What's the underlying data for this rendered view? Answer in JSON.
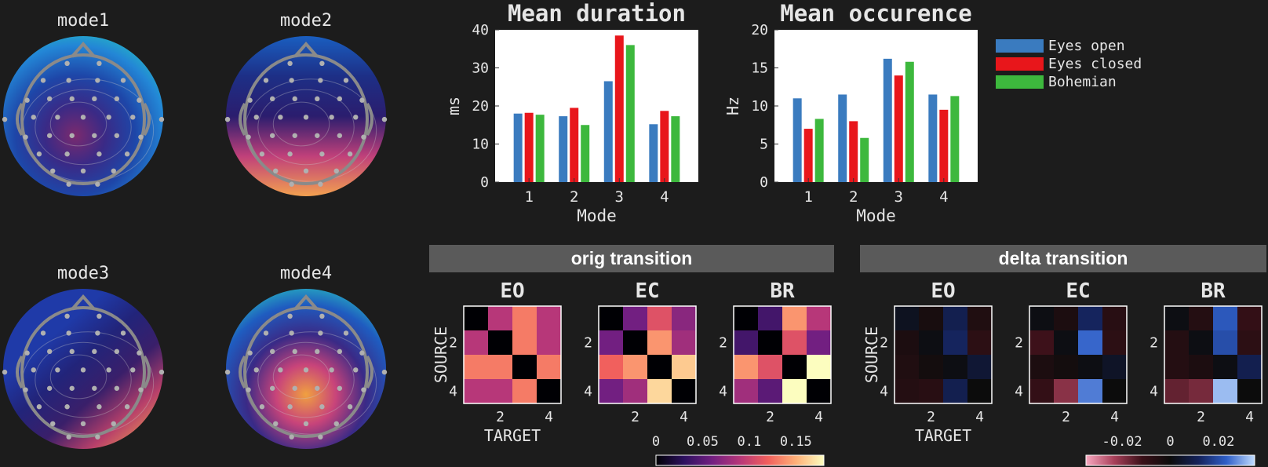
{
  "topomaps": [
    {
      "label": "mode1",
      "colors": [
        "#7b2a6e",
        "#3a2a86",
        "#1e46a8",
        "#2386d6",
        "#25d1b8"
      ]
    },
    {
      "label": "mode2",
      "colors": [
        "#1a5ec0",
        "#1d2f86",
        "#2b1d6e",
        "#c0407a",
        "#f2a050"
      ]
    },
    {
      "label": "mode3",
      "colors": [
        "#1f3aa8",
        "#22247a",
        "#3a1f6a",
        "#b8406a",
        "#f0a050"
      ]
    },
    {
      "label": "mode4",
      "colors": [
        "#f0a040",
        "#c8447a",
        "#3a2a86",
        "#1f5cc0",
        "#2ad0c0"
      ]
    }
  ],
  "chart_data": [
    {
      "type": "bar",
      "title": "Mean duration",
      "xlabel": "Mode",
      "ylabel": "ms",
      "categories": [
        "1",
        "2",
        "3",
        "4"
      ],
      "ylim": [
        0,
        40
      ],
      "yticks": [
        "0",
        "10",
        "20",
        "30",
        "40"
      ],
      "series": [
        {
          "name": "Eyes open",
          "color": "#3a7bbf",
          "values": [
            18,
            17.3,
            26.5,
            15.2
          ]
        },
        {
          "name": "Eyes closed",
          "color": "#e8161b",
          "values": [
            18.2,
            19.5,
            38.5,
            18.7
          ]
        },
        {
          "name": "Bohemian",
          "color": "#3db83d",
          "values": [
            17.7,
            15,
            36,
            17.3
          ]
        }
      ]
    },
    {
      "type": "bar",
      "title": "Mean occurence",
      "xlabel": "Mode",
      "ylabel": "Hz",
      "categories": [
        "1",
        "2",
        "3",
        "4"
      ],
      "ylim": [
        0,
        20
      ],
      "yticks": [
        "0",
        "5",
        "10",
        "15",
        "20"
      ],
      "series": [
        {
          "name": "Eyes open",
          "color": "#3a7bbf",
          "values": [
            11,
            11.5,
            16.2,
            11.5
          ]
        },
        {
          "name": "Eyes closed",
          "color": "#e8161b",
          "values": [
            7,
            8,
            14,
            9.5
          ]
        },
        {
          "name": "Bohemian",
          "color": "#3db83d",
          "values": [
            8.3,
            5.8,
            15.8,
            11.3
          ]
        }
      ]
    },
    {
      "type": "heatmap",
      "group": "orig transition",
      "ylabel": "SOURCE",
      "xlabel": "TARGET",
      "ticks": [
        "2",
        "4"
      ],
      "colorbar": {
        "ticks": [
          "0",
          "0.05",
          "0.1",
          "0.15"
        ],
        "range": [
          0,
          0.18
        ],
        "palette": "magma"
      },
      "panels": [
        {
          "name": "EO",
          "matrix": [
            [
              0,
              0.09,
              0.13,
              0.09
            ],
            [
              0.09,
              0,
              0.13,
              0.09
            ],
            [
              0.13,
              0.13,
              0,
              0.13
            ],
            [
              0.09,
              0.09,
              0.13,
              0
            ]
          ]
        },
        {
          "name": "EC",
          "matrix": [
            [
              0,
              0.06,
              0.11,
              0.07
            ],
            [
              0.06,
              0,
              0.14,
              0.08
            ],
            [
              0.12,
              0.14,
              0,
              0.16
            ],
            [
              0.06,
              0.08,
              0.165,
              0
            ]
          ]
        },
        {
          "name": "BR",
          "matrix": [
            [
              0,
              0.04,
              0.14,
              0.09
            ],
            [
              0.04,
              0,
              0.11,
              0.06
            ],
            [
              0.14,
              0.11,
              0,
              0.19
            ],
            [
              0.08,
              0.05,
              0.19,
              0
            ]
          ]
        }
      ]
    },
    {
      "type": "heatmap",
      "group": "delta transition",
      "ylabel": "SOURCE",
      "xlabel": "TARGET",
      "ticks": [
        "2",
        "4"
      ],
      "colorbar": {
        "ticks": [
          "-0.02",
          "0",
          "0.02"
        ],
        "range": [
          -0.035,
          0.035
        ],
        "palette": "diverging"
      },
      "panels": [
        {
          "name": "EO",
          "matrix": [
            [
              0.003,
              -0.003,
              0.01,
              -0.005
            ],
            [
              -0.004,
              0.001,
              0.012,
              -0.008
            ],
            [
              -0.005,
              -0.002,
              0.001,
              0.006
            ],
            [
              -0.006,
              -0.007,
              0.01,
              0
            ]
          ]
        },
        {
          "name": "EC",
          "matrix": [
            [
              0.001,
              -0.004,
              0.012,
              -0.007
            ],
            [
              -0.012,
              0.001,
              0.024,
              -0.008
            ],
            [
              -0.004,
              -0.002,
              0.001,
              0.004
            ],
            [
              -0.01,
              -0.02,
              0.026,
              0
            ]
          ]
        },
        {
          "name": "BR",
          "matrix": [
            [
              0.001,
              -0.006,
              0.022,
              -0.01
            ],
            [
              -0.006,
              0.001,
              0.02,
              -0.008
            ],
            [
              -0.006,
              -0.004,
              0.001,
              0.01
            ],
            [
              -0.016,
              -0.018,
              0.032,
              0
            ]
          ]
        }
      ]
    }
  ]
}
